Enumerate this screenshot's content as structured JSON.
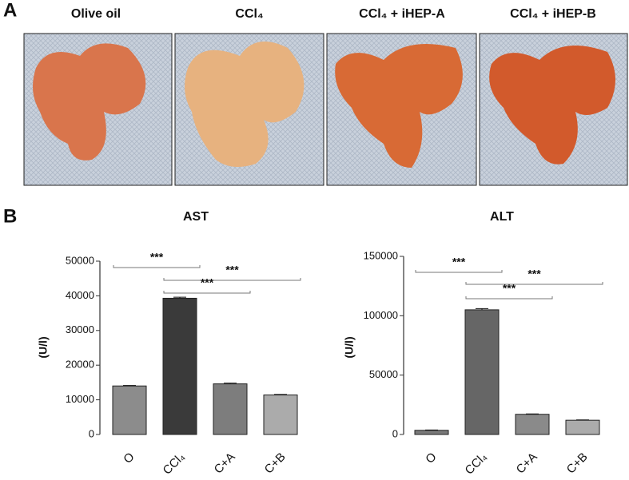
{
  "panel_a": {
    "label": "A",
    "titles": [
      "Olive oil",
      "CCl₄",
      "CCl₄ + iHEP-A",
      "CCl₄ + iHEP-B"
    ]
  },
  "panel_b": {
    "label": "B"
  },
  "chart_data": [
    {
      "type": "bar",
      "title": "AST",
      "y_label": "(U/l)",
      "categories": [
        "O",
        "CCl₄",
        "C+A",
        "C+B"
      ],
      "values": [
        14000,
        39300,
        14600,
        11400
      ],
      "errors": [
        150,
        300,
        200,
        150
      ],
      "colors": [
        "#8c8c8c",
        "#3a3a3a",
        "#7d7d7d",
        "#ababab"
      ],
      "ylim": [
        0,
        50000
      ],
      "yticks": [
        0,
        10000,
        20000,
        30000,
        40000,
        50000
      ],
      "annotations": [
        "***",
        "***",
        "***"
      ]
    },
    {
      "type": "bar",
      "title": "ALT",
      "y_label": "(U/l)",
      "categories": [
        "O",
        "CCl₄",
        "C+A",
        "C+B"
      ],
      "values": [
        3500,
        105000,
        17000,
        12000
      ],
      "errors": [
        300,
        1000,
        300,
        300
      ],
      "colors": [
        "#7a7a7a",
        "#666666",
        "#8a8a8a",
        "#ababab"
      ],
      "ylim": [
        0,
        150000
      ],
      "yticks": [
        0,
        50000,
        100000,
        150000
      ],
      "annotations": [
        "***",
        "***",
        "***"
      ]
    }
  ]
}
